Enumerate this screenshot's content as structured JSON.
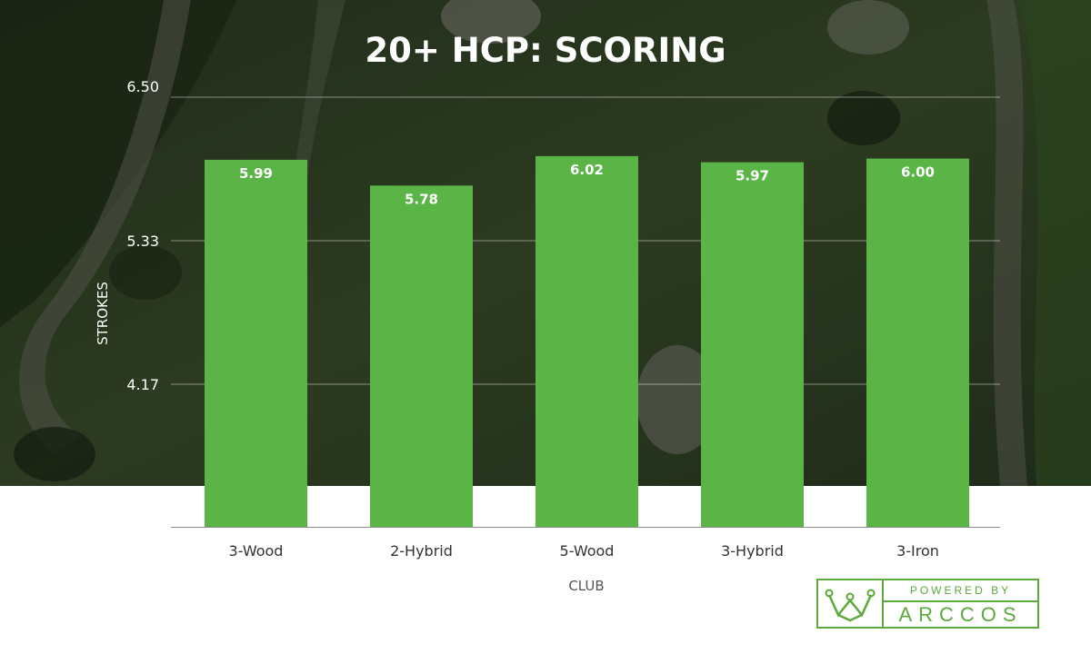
{
  "chart_data": {
    "type": "bar",
    "title": "20+ HCP: SCORING",
    "xlabel": "CLUB",
    "ylabel": "STROKES",
    "categories": [
      "3-Wood",
      "2-Hybrid",
      "5-Wood",
      "3-Hybrid",
      "3-Iron"
    ],
    "values": [
      5.99,
      5.78,
      6.02,
      5.97,
      6.0
    ],
    "value_labels": [
      "5.99",
      "5.78",
      "6.02",
      "5.97",
      "6.00"
    ],
    "yticks": [
      "4.17",
      "5.33",
      "6.50"
    ],
    "ylim": [
      3,
      6.5
    ],
    "grid": true,
    "bar_color": "#5ab546"
  },
  "logo": {
    "powered": "POWERED BY",
    "brand": "ARCCOS",
    "accent": "#5aaa3c"
  }
}
